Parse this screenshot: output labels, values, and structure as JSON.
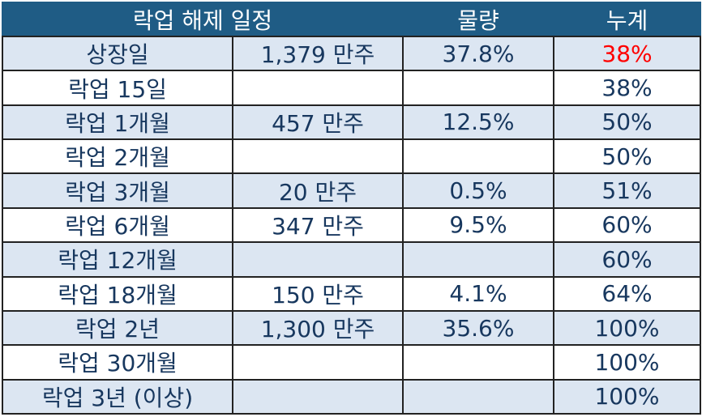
{
  "table": {
    "header": [
      "락업 해제 일정",
      "물량",
      "누계"
    ],
    "rows": [
      [
        "상장일",
        "1,379 만주",
        "37.8%",
        "38%"
      ],
      [
        "락업 15일",
        null,
        null,
        "38%"
      ],
      [
        "락업 1개월",
        "457 만주",
        "12.5%",
        "50%"
      ],
      [
        "락업 2개월",
        null,
        null,
        "50%"
      ],
      [
        "락업 3개월",
        "20 만주",
        "0.5%",
        "51%"
      ],
      [
        "락업 6개월",
        "347 만주",
        "9.5%",
        "60%"
      ],
      [
        "락업 12개월",
        null,
        null,
        "60%"
      ],
      [
        "락업 18개월",
        "150 만주",
        "4.1%",
        "64%"
      ],
      [
        "락업 2년",
        "1,300 만주",
        "35.6%",
        "100%"
      ],
      [
        "락업 30개월",
        null,
        null,
        "100%"
      ],
      [
        "락업 3년 (이상)",
        null,
        null,
        "100%"
      ]
    ]
  }
}
